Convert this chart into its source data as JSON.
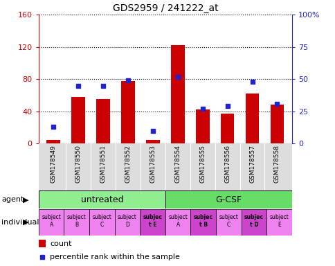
{
  "title": "GDS2959 / 241222_at",
  "samples": [
    "GSM178549",
    "GSM178550",
    "GSM178551",
    "GSM178552",
    "GSM178553",
    "GSM178554",
    "GSM178555",
    "GSM178556",
    "GSM178557",
    "GSM178558"
  ],
  "counts": [
    5,
    58,
    55,
    78,
    5,
    122,
    42,
    37,
    62,
    48
  ],
  "percentile_ranks": [
    13,
    45,
    45,
    49,
    10,
    52,
    27,
    29,
    48,
    31
  ],
  "ylim_left": [
    0,
    160
  ],
  "ylim_right": [
    0,
    100
  ],
  "yticks_left": [
    0,
    40,
    80,
    120,
    160
  ],
  "yticks_right": [
    0,
    25,
    50,
    75,
    100
  ],
  "yticklabels_left": [
    "0",
    "40",
    "80",
    "120",
    "160"
  ],
  "yticklabels_right": [
    "0",
    "25",
    "50",
    "75",
    "100%"
  ],
  "bar_color": "#cc0000",
  "dot_color": "#2222cc",
  "agent_untreated_color": "#90ee90",
  "agent_gcsf_color": "#66dd66",
  "individual_colors_normal": "#ee82ee",
  "individual_colors_bold": "#cc44cc",
  "bg_color": "#ffffff",
  "xtick_bg": "#dddddd",
  "bar_width": 0.55,
  "individual_labels": [
    "subject\nA",
    "subject\nB",
    "subject\nC",
    "subject\nD",
    "subjec\nt E",
    "subject\nA",
    "subjec\nt B",
    "subject\nC",
    "subjec\nt D",
    "subject\nE"
  ],
  "individual_bold": [
    false,
    false,
    false,
    false,
    true,
    false,
    true,
    false,
    true,
    false
  ]
}
